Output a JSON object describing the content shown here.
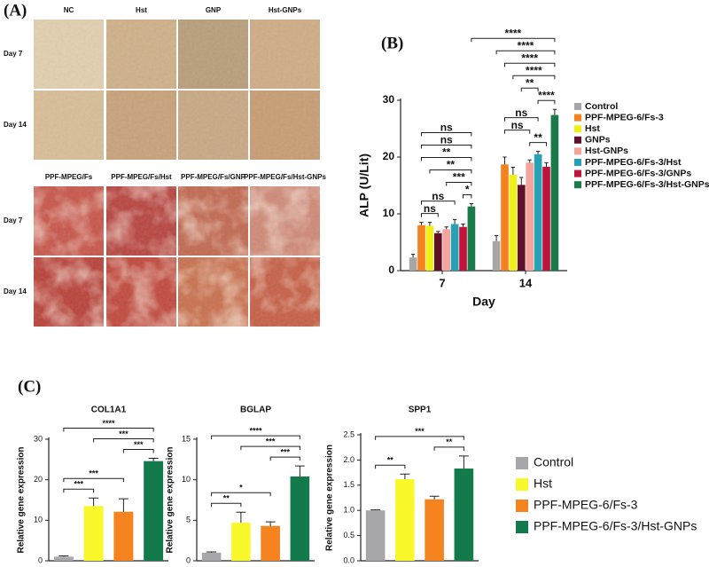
{
  "panel_a": {
    "label": "(A)",
    "columns_top": [
      "NC",
      "Hst",
      "GNP",
      "Hst-GNPs"
    ],
    "columns_bottom": [
      "PPF-MPEG/Fs",
      "PPF-MPEG/Fs/Hst",
      "PPF-MPEG/Fs/GNP",
      "PPF-MPEG/Fs/Hst-GNPs"
    ],
    "rows": [
      "Day 7",
      "Day 14"
    ]
  },
  "figure_c_legend": [
    {
      "name": "Control",
      "color": "#a7a7ab"
    },
    {
      "name": "Hst",
      "color": "#f8f82a"
    },
    {
      "name": "PPF-MPEG-6/Fs-3",
      "color": "#f5831f"
    },
    {
      "name": "PPF-MPEG-6/Fs-3/Hst-GNPs",
      "color": "#137a4c"
    }
  ],
  "chart_data": [
    {
      "type": "bar",
      "panel_label": "(B)",
      "x_label": "Day",
      "y_label": "ALP (U/Lit)",
      "categories": [
        "7",
        "14"
      ],
      "series": [
        {
          "name": "Control",
          "color": "#a6a6a6",
          "values": [
            2.3,
            5.2
          ],
          "errors": [
            0.6,
            1.0
          ]
        },
        {
          "name": "PPF-MPEG-6/Fs-3",
          "color": "#f5821f",
          "values": [
            8.0,
            18.7
          ],
          "errors": [
            0.5,
            1.3
          ]
        },
        {
          "name": "Hst",
          "color": "#f2ee1a",
          "values": [
            7.9,
            16.9
          ],
          "errors": [
            0.6,
            1.3
          ]
        },
        {
          "name": "GNPs",
          "color": "#5e0f2a",
          "values": [
            6.6,
            15.1
          ],
          "errors": [
            0.3,
            1.3
          ]
        },
        {
          "name": "Hst-GNPs",
          "color": "#f4a49c",
          "values": [
            7.3,
            19.0
          ],
          "errors": [
            0.4,
            0.5
          ]
        },
        {
          "name": "PPF-MPEG-6/Fs-3/Hst",
          "color": "#27a2b5",
          "values": [
            8.2,
            20.5
          ],
          "errors": [
            0.8,
            0.5
          ]
        },
        {
          "name": "PPF-MPEG-6/Fs-3/GNPs",
          "color": "#c0143c",
          "values": [
            7.7,
            18.3
          ],
          "errors": [
            0.5,
            0.7
          ]
        },
        {
          "name": "PPF-MPEG-6/Fs-3/Hst-GNPs",
          "color": "#1a7a4a",
          "values": [
            11.3,
            27.4
          ],
          "errors": [
            0.5,
            1.0
          ]
        }
      ],
      "ylim": [
        0,
        30
      ],
      "yticks": [
        0,
        10,
        20,
        30
      ],
      "brackets": [
        {
          "label": "****",
          "from": [
            0,
            7
          ],
          "to": [
            1,
            7
          ]
        },
        {
          "label": "****",
          "from": [
            1,
            0
          ],
          "to": [
            1,
            7
          ]
        },
        {
          "label": "****",
          "from": [
            1,
            1
          ],
          "to": [
            1,
            7
          ]
        },
        {
          "label": "****",
          "from": [
            1,
            2
          ],
          "to": [
            1,
            7
          ]
        },
        {
          "label": "**",
          "from": [
            1,
            3
          ],
          "to": [
            1,
            5
          ]
        },
        {
          "label": "****",
          "from": [
            1,
            5
          ],
          "to": [
            1,
            7
          ]
        },
        {
          "label": "ns",
          "from": [
            1,
            1
          ],
          "to": [
            1,
            5
          ]
        },
        {
          "label": "ns",
          "from": [
            1,
            1
          ],
          "to": [
            1,
            4
          ]
        },
        {
          "label": "**",
          "from": [
            1,
            4
          ],
          "to": [
            1,
            6
          ]
        },
        {
          "label": "ns",
          "from": [
            0,
            1
          ],
          "to": [
            0,
            7
          ]
        },
        {
          "label": "ns",
          "from": [
            0,
            1
          ],
          "to": [
            0,
            7
          ]
        },
        {
          "label": "**",
          "from": [
            0,
            1
          ],
          "to": [
            0,
            7
          ]
        },
        {
          "label": "**",
          "from": [
            0,
            2
          ],
          "to": [
            0,
            7
          ]
        },
        {
          "label": "***",
          "from": [
            0,
            4
          ],
          "to": [
            0,
            7
          ]
        },
        {
          "label": "*",
          "from": [
            0,
            6
          ],
          "to": [
            0,
            7
          ]
        },
        {
          "label": "ns",
          "from": [
            0,
            1
          ],
          "to": [
            0,
            5
          ]
        },
        {
          "label": "ns",
          "from": [
            0,
            1
          ],
          "to": [
            0,
            3
          ]
        }
      ]
    },
    {
      "type": "bar",
      "panel_label": "(C)",
      "title": "COL1A1",
      "y_label": "Relative gene expression",
      "values": [
        1.0,
        13.5,
        12.1,
        24.6
      ],
      "errors": [
        0.2,
        2.0,
        3.2,
        0.7
      ],
      "ylim": [
        0,
        30
      ],
      "yticks": [
        0,
        10,
        20,
        30
      ],
      "brackets": [
        {
          "label": "****",
          "from": 0,
          "to": 3
        },
        {
          "label": "***",
          "from": 1,
          "to": 3
        },
        {
          "label": "***",
          "from": 2,
          "to": 3
        },
        {
          "label": "***",
          "from": 0,
          "to": 2
        },
        {
          "label": "***",
          "from": 0,
          "to": 1
        }
      ]
    },
    {
      "type": "bar",
      "title": "BGLAP",
      "y_label": "Relative gene expression",
      "values": [
        1.0,
        4.7,
        4.3,
        10.4
      ],
      "errors": [
        0.1,
        1.3,
        0.5,
        1.3
      ],
      "ylim": [
        0,
        15
      ],
      "yticks": [
        0,
        5,
        10,
        15
      ],
      "brackets": [
        {
          "label": "****",
          "from": 0,
          "to": 3
        },
        {
          "label": "***",
          "from": 1,
          "to": 3
        },
        {
          "label": "***",
          "from": 2,
          "to": 3
        },
        {
          "label": "*",
          "from": 0,
          "to": 2
        },
        {
          "label": "**",
          "from": 0,
          "to": 1
        }
      ]
    },
    {
      "type": "bar",
      "title": "SPP1",
      "y_label": "Relative gene expression",
      "values": [
        1.0,
        1.62,
        1.22,
        1.83
      ],
      "errors": [
        0.01,
        0.1,
        0.06,
        0.25
      ],
      "ylim": [
        0,
        2.5
      ],
      "yticks": [
        {
          "value": 0,
          "label": "0.0"
        },
        0.5,
        {
          "value": 1,
          "label": "1.0"
        },
        1.5,
        {
          "value": 2,
          "label": "2.0"
        },
        2.5
      ],
      "brackets": [
        {
          "label": "***",
          "from": 0,
          "to": 3
        },
        {
          "label": "**",
          "from": 0,
          "to": 1
        },
        {
          "label": "**",
          "from": 2,
          "to": 3
        }
      ]
    }
  ]
}
